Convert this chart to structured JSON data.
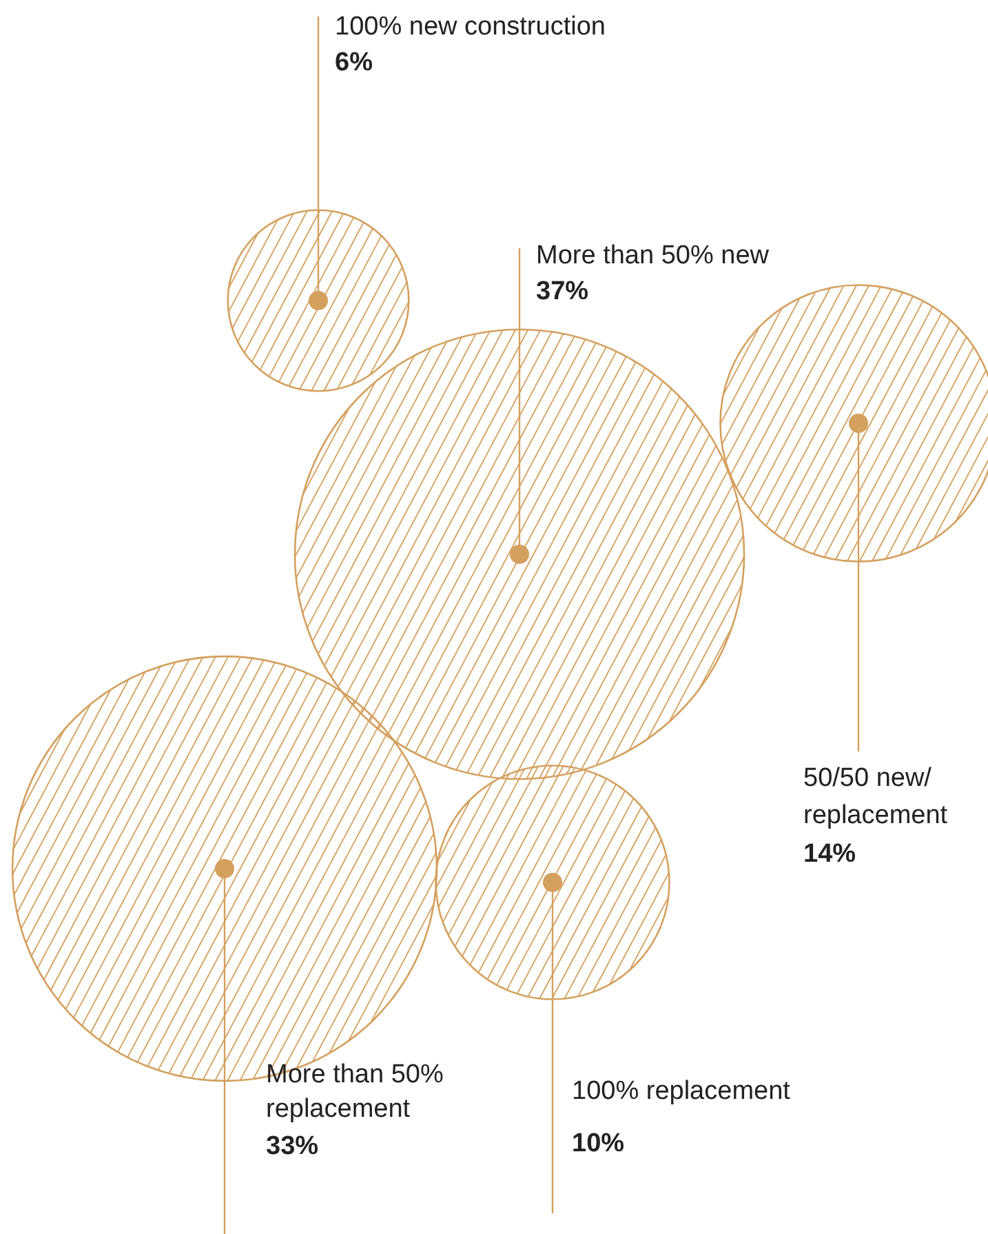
{
  "chart_data": {
    "type": "other",
    "categories": [
      "100% new construction",
      "More than 50% new",
      "50/50 new/\nreplacement",
      "More than 50%\nreplacement",
      "100% replacement"
    ],
    "values": [
      6,
      37,
      14,
      33,
      10
    ],
    "value_labels": [
      "6%",
      "37%",
      "14%",
      "33%",
      "10%"
    ],
    "color": "#d4a05e"
  }
}
